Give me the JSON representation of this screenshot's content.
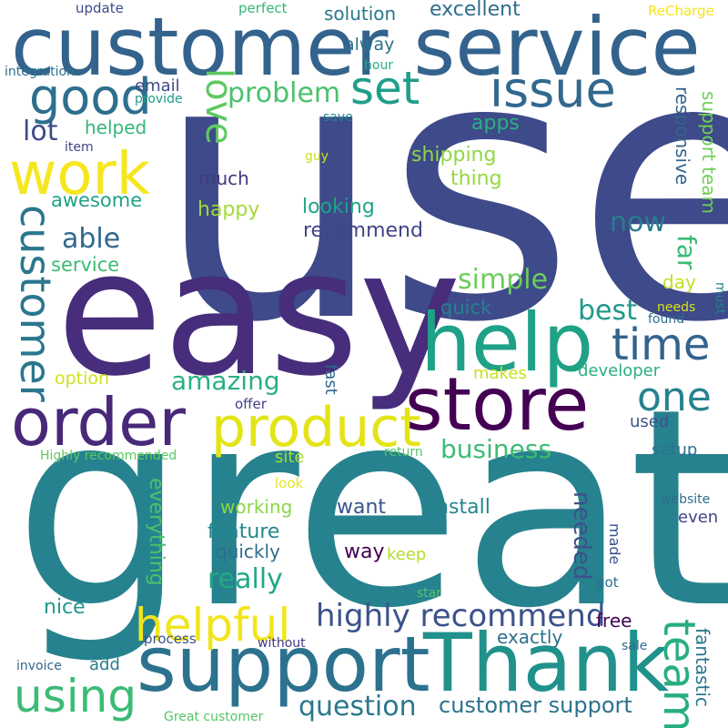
{
  "colors": {
    "background": "#ffffff",
    "palette": [
      "#440154",
      "#3e4a89",
      "#31688e",
      "#26828e",
      "#1f9e89",
      "#35b779",
      "#6ece58",
      "#b5de2b",
      "#fde725"
    ]
  },
  "words": [
    {
      "text": "use",
      "color": "#3e4a89"
    },
    {
      "text": "great",
      "color": "#26828e"
    },
    {
      "text": "easy",
      "color": "#472d7b"
    },
    {
      "text": "customer service",
      "color": "#33638d"
    },
    {
      "text": "support",
      "color": "#2c728e"
    },
    {
      "text": "Thank",
      "color": "#21918c"
    },
    {
      "text": "help",
      "color": "#1fa187"
    },
    {
      "text": "store",
      "color": "#440154"
    },
    {
      "text": "order",
      "color": "#482878"
    },
    {
      "text": "product",
      "color": "#e3e418"
    },
    {
      "text": "work",
      "color": "#f6e620"
    },
    {
      "text": "issue",
      "color": "#31688e"
    },
    {
      "text": "good",
      "color": "#2e6e8e"
    },
    {
      "text": "time",
      "color": "#33638d"
    },
    {
      "text": "set",
      "color": "#1f9e89"
    },
    {
      "text": "one",
      "color": "#26828e"
    },
    {
      "text": "helpful",
      "color": "#f1e51d"
    },
    {
      "text": "using",
      "color": "#3bbb75"
    },
    {
      "text": "team",
      "color": "#28ae80"
    },
    {
      "text": "customer",
      "color": "#2a778e"
    },
    {
      "text": "love",
      "color": "#5ec962"
    },
    {
      "text": "highly recommend",
      "color": "#3b528b"
    },
    {
      "text": "problem",
      "color": "#4ac16d"
    },
    {
      "text": "question",
      "color": "#2a788e"
    },
    {
      "text": "customer support",
      "color": "#2c728e"
    },
    {
      "text": "really",
      "color": "#22a884"
    },
    {
      "text": "amazing",
      "color": "#2ab07f"
    },
    {
      "text": "business",
      "color": "#3dbc74"
    },
    {
      "text": "able",
      "color": "#31688e"
    },
    {
      "text": "now",
      "color": "#287c8e"
    },
    {
      "text": "simple",
      "color": "#6ccd5a"
    },
    {
      "text": "best",
      "color": "#1f9a8a"
    },
    {
      "text": "lot",
      "color": "#3e4a89"
    },
    {
      "text": "far",
      "color": "#3bbb75"
    },
    {
      "text": "needed",
      "color": "#3b528b"
    },
    {
      "text": "apps",
      "color": "#2ab07f"
    },
    {
      "text": "solution",
      "color": "#2a788e"
    },
    {
      "text": "excellent",
      "color": "#2e6e8e"
    },
    {
      "text": "shipping",
      "color": "#8fd744"
    },
    {
      "text": "thing",
      "color": "#95d840"
    },
    {
      "text": "awesome",
      "color": "#1fa187"
    },
    {
      "text": "service",
      "color": "#3bbb75"
    },
    {
      "text": "recommend",
      "color": "#414487"
    },
    {
      "text": "looking",
      "color": "#20a386"
    },
    {
      "text": "happy",
      "color": "#a2da37"
    },
    {
      "text": "much",
      "color": "#453781"
    },
    {
      "text": "helped",
      "color": "#34b679"
    },
    {
      "text": "email",
      "color": "#3e4a89"
    },
    {
      "text": "provide",
      "color": "#1f9e89"
    },
    {
      "text": "alway",
      "color": "#2d708e"
    },
    {
      "text": "hour",
      "color": "#27ad81"
    },
    {
      "text": "responsive",
      "color": "#33638d"
    },
    {
      "text": "support team",
      "color": "#6ece58"
    },
    {
      "text": "quick",
      "color": "#26828e"
    },
    {
      "text": "day",
      "color": "#c2df23"
    },
    {
      "text": "needs",
      "color": "#d8e219"
    },
    {
      "text": "found",
      "color": "#2d708e"
    },
    {
      "text": "must",
      "color": "#26828e"
    },
    {
      "text": "developer",
      "color": "#2ab07f"
    },
    {
      "text": "makes",
      "color": "#c8e020"
    },
    {
      "text": "option",
      "color": "#d0e11c"
    },
    {
      "text": "fast",
      "color": "#31688e"
    },
    {
      "text": "offer",
      "color": "#433e85"
    },
    {
      "text": "used",
      "color": "#39568c"
    },
    {
      "text": "setup",
      "color": "#2c728e"
    },
    {
      "text": "return",
      "color": "#52c569"
    },
    {
      "text": "site",
      "color": "#a8db34"
    },
    {
      "text": "look",
      "color": "#e5e419"
    },
    {
      "text": "working",
      "color": "#8bd646"
    },
    {
      "text": "everything",
      "color": "#4ac16d"
    },
    {
      "text": "feature",
      "color": "#23888e"
    },
    {
      "text": "want",
      "color": "#39568c"
    },
    {
      "text": "install",
      "color": "#25848e"
    },
    {
      "text": "way",
      "color": "#440154"
    },
    {
      "text": "keep",
      "color": "#b5de2b"
    },
    {
      "text": "quickly",
      "color": "#2f6c8e"
    },
    {
      "text": "even",
      "color": "#3f4788"
    },
    {
      "text": "u",
      "color": "#277f8e"
    },
    {
      "text": "website",
      "color": "#2f6c8e"
    },
    {
      "text": "made",
      "color": "#3b528b"
    },
    {
      "text": "got",
      "color": "#2d708e"
    },
    {
      "text": "star",
      "color": "#52c569"
    },
    {
      "text": "free",
      "color": "#440154"
    },
    {
      "text": "exactly",
      "color": "#2c728e"
    },
    {
      "text": "nice",
      "color": "#1f988b"
    },
    {
      "text": "process",
      "color": "#3a548c"
    },
    {
      "text": "without",
      "color": "#453781"
    },
    {
      "text": "add",
      "color": "#287c8e"
    },
    {
      "text": "invoice",
      "color": "#31688e"
    },
    {
      "text": "sale",
      "color": "#31688e"
    },
    {
      "text": "fantastic",
      "color": "#2a788e"
    },
    {
      "text": "Great customer",
      "color": "#56c667"
    },
    {
      "text": "Highly recommended",
      "color": "#5ec962"
    },
    {
      "text": "update",
      "color": "#3e4a89"
    },
    {
      "text": "perfect",
      "color": "#35b779"
    },
    {
      "text": "ReCharge",
      "color": "#f1e51d"
    },
    {
      "text": "integration",
      "color": "#2d708e"
    },
    {
      "text": "item",
      "color": "#414487"
    },
    {
      "text": "save",
      "color": "#25848e"
    },
    {
      "text": "guy",
      "color": "#c8e020"
    }
  ]
}
